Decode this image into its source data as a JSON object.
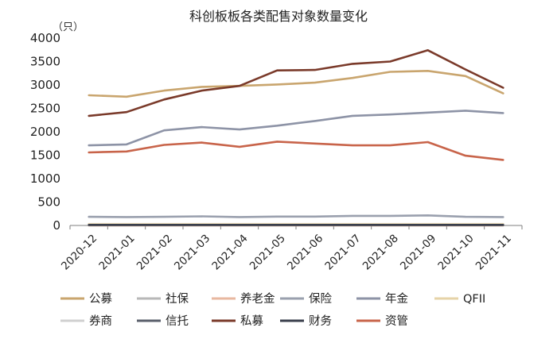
{
  "chart_data": {
    "type": "line",
    "title": "科创板板各类配售对象数量变化",
    "unit_label": "（只）",
    "xlabel": "",
    "ylabel": "（只）",
    "ylim": [
      0,
      4000
    ],
    "yticks": [
      0,
      500,
      1000,
      1500,
      2000,
      2500,
      3000,
      3500,
      4000
    ],
    "categories": [
      "2020-12",
      "2021-01",
      "2021-02",
      "2021-03",
      "2021-04",
      "2021-05",
      "2021-06",
      "2021-07",
      "2021-08",
      "2021-09",
      "2021-10",
      "2021-11"
    ],
    "grid": false,
    "legend_position": "bottom",
    "series": [
      {
        "name": "公募",
        "color": "#C9A56E",
        "values": [
          2780,
          2750,
          2880,
          2960,
          2980,
          3010,
          3050,
          3150,
          3280,
          3300,
          3190,
          2820
        ]
      },
      {
        "name": "社保",
        "color": "#B8B8B8",
        "values": [
          5,
          5,
          5,
          5,
          5,
          5,
          5,
          5,
          5,
          5,
          5,
          5
        ]
      },
      {
        "name": "养老金",
        "color": "#E8B8A0",
        "values": [
          2,
          2,
          2,
          2,
          2,
          2,
          2,
          2,
          2,
          2,
          2,
          2
        ]
      },
      {
        "name": "保险",
        "color": "#9AA0AE",
        "values": [
          185,
          180,
          185,
          195,
          180,
          190,
          190,
          205,
          205,
          215,
          185,
          180
        ]
      },
      {
        "name": "年金",
        "color": "#8D93A6",
        "values": [
          1710,
          1730,
          2030,
          2100,
          2050,
          2130,
          2230,
          2340,
          2370,
          2410,
          2450,
          2400
        ]
      },
      {
        "name": "QFII",
        "color": "#E6D3A8",
        "values": [
          30,
          30,
          30,
          30,
          30,
          30,
          30,
          30,
          30,
          30,
          30,
          30
        ]
      },
      {
        "name": "券商",
        "color": "#D0D0D0",
        "values": [
          15,
          15,
          15,
          15,
          15,
          15,
          15,
          15,
          15,
          15,
          15,
          15
        ]
      },
      {
        "name": "信托",
        "color": "#5A5F6B",
        "values": [
          8,
          8,
          8,
          8,
          8,
          8,
          8,
          8,
          8,
          8,
          8,
          8
        ]
      },
      {
        "name": "私募",
        "color": "#7A3A2A",
        "values": [
          2340,
          2420,
          2690,
          2880,
          2980,
          3310,
          3320,
          3450,
          3500,
          3740,
          3330,
          2940
        ]
      },
      {
        "name": "财务",
        "color": "#3A3F4C",
        "values": [
          12,
          12,
          12,
          12,
          12,
          12,
          12,
          12,
          12,
          12,
          12,
          12
        ]
      },
      {
        "name": "资管",
        "color": "#C8644A",
        "values": [
          1560,
          1580,
          1720,
          1770,
          1680,
          1790,
          1750,
          1710,
          1710,
          1780,
          1490,
          1400
        ]
      }
    ]
  }
}
